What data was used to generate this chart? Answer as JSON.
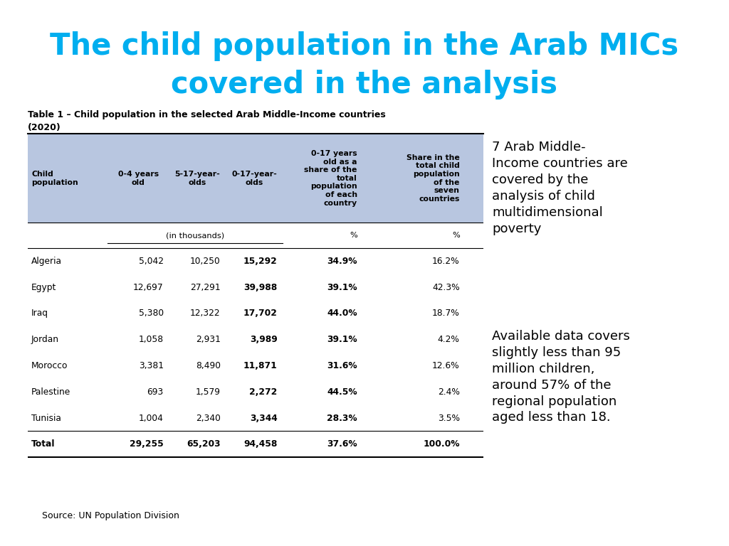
{
  "title_line1": "The child population in the Arab MICs",
  "title_line2": "covered in the analysis",
  "title_color": "#00AEEF",
  "subtitle_line1": "Table 1 – Child population in the selected Arab Middle-Income countries",
  "subtitle_line2": "(2020)",
  "header_bg": "#B8C6E0",
  "col_headers": [
    "Child\npopulation",
    "0-4 years\nold",
    "5-17-year-\nolds",
    "0-17-year-\nolds",
    "0-17 years\nold as a\nshare of the\ntotal\npopulation\nof each\ncountry",
    "Share in the\ntotal child\npopulation\nof the\nseven\ncountries"
  ],
  "rows": [
    [
      "Algeria",
      "5,042",
      "10,250",
      "15,292",
      "34.9%",
      "16.2%"
    ],
    [
      "Egypt",
      "12,697",
      "27,291",
      "39,988",
      "39.1%",
      "42.3%"
    ],
    [
      "Iraq",
      "5,380",
      "12,322",
      "17,702",
      "44.0%",
      "18.7%"
    ],
    [
      "Jordan",
      "1,058",
      "2,931",
      "3,989",
      "39.1%",
      "4.2%"
    ],
    [
      "Morocco",
      "3,381",
      "8,490",
      "11,871",
      "31.6%",
      "12.6%"
    ],
    [
      "Palestine",
      "693",
      "1,579",
      "2,272",
      "44.5%",
      "2.4%"
    ],
    [
      "Tunisia",
      "1,004",
      "2,340",
      "3,344",
      "28.3%",
      "3.5%"
    ]
  ],
  "total_row": [
    "Total",
    "29,255",
    "65,203",
    "94,458",
    "37.6%",
    "100.0%"
  ],
  "source": "Source: UN Population Division",
  "side_text1": "7 Arab Middle-\nIncome countries are\ncovered by the\nanalysis of child\nmultidimensional\npoverty",
  "side_text2": "Available data covers\nslightly less than 95\nmillion children,\naround 57% of the\nregional population\naged less than 18."
}
